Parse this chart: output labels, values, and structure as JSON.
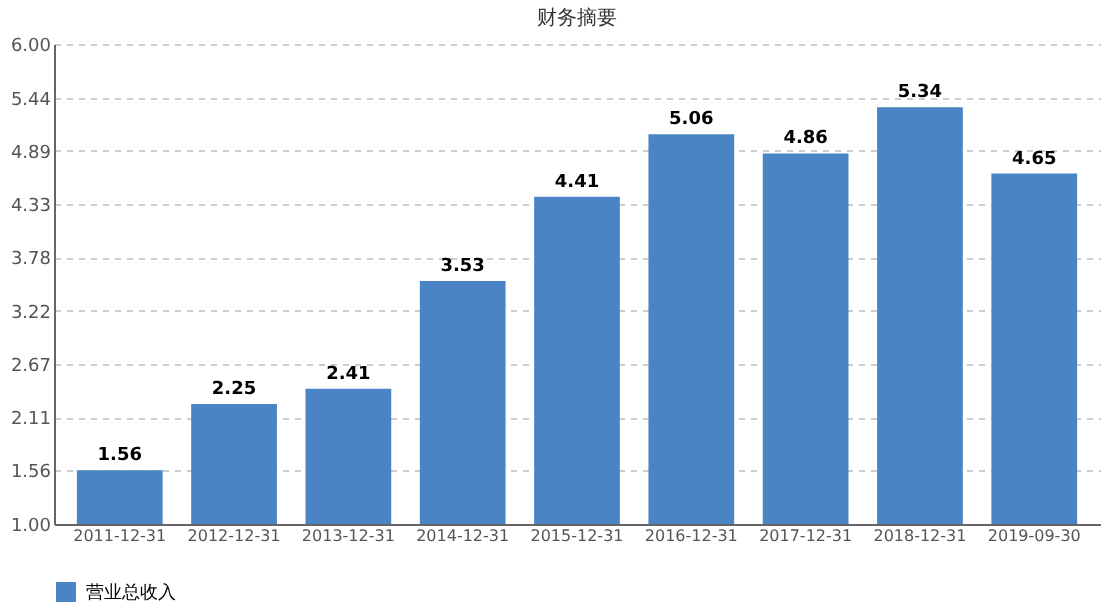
{
  "chart_data": {
    "type": "bar",
    "title": "财务摘要",
    "categories": [
      "2011-12-31",
      "2012-12-31",
      "2013-12-31",
      "2014-12-31",
      "2015-12-31",
      "2016-12-31",
      "2017-12-31",
      "2018-12-31",
      "2019-09-30"
    ],
    "series": [
      {
        "name": "营业总收入",
        "color": "#4a84c4",
        "values": [
          1.56,
          2.25,
          2.41,
          3.53,
          4.41,
          5.06,
          4.86,
          5.34,
          4.65
        ]
      }
    ],
    "ylim": [
      1.0,
      6.0
    ],
    "yticks": [
      {
        "value": 1.0,
        "label": "1.00"
      },
      {
        "value": 1.56,
        "label": "1.56"
      },
      {
        "value": 2.11,
        "label": "2.11"
      },
      {
        "value": 2.67,
        "label": "2.67"
      },
      {
        "value": 3.22,
        "label": "3.22"
      },
      {
        "value": 3.78,
        "label": "3.78"
      },
      {
        "value": 4.33,
        "label": "4.33"
      },
      {
        "value": 4.89,
        "label": "4.89"
      },
      {
        "value": 5.44,
        "label": "5.44"
      },
      {
        "value": 6.0,
        "label": "6.00"
      }
    ],
    "grid": "y",
    "legend": "bottom",
    "data_labels": true
  }
}
